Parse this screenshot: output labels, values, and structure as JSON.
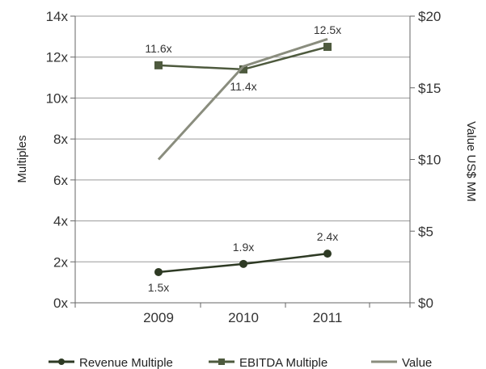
{
  "chart_data": {
    "type": "line",
    "categories": [
      "2009",
      "2010",
      "2011"
    ],
    "y_left": {
      "label": "Multiples",
      "range": [
        0,
        14
      ],
      "ticks": [
        "0x",
        "2x",
        "4x",
        "6x",
        "8x",
        "10x",
        "12x",
        "14x"
      ]
    },
    "y_right": {
      "label": "Value US$ MM",
      "range": [
        0,
        20
      ],
      "ticks": [
        "$0",
        "$5",
        "$10",
        "$15",
        "$20"
      ]
    },
    "grid": true,
    "legend_position": "bottom",
    "series": [
      {
        "name": "Revenue Multiple",
        "axis": "left",
        "marker": "circle",
        "color": "#2e3a24",
        "values": [
          1.5,
          1.9,
          2.4
        ],
        "labels": [
          "1.5x",
          "1.9x",
          "2.4x"
        ]
      },
      {
        "name": "EBITDA Multiple",
        "axis": "left",
        "marker": "square",
        "color": "#4e5a3e",
        "values": [
          11.6,
          11.4,
          12.5
        ],
        "labels": [
          "11.6x",
          "11.4x",
          "12.5x"
        ]
      },
      {
        "name": "Value",
        "axis": "right",
        "marker": "none",
        "color": "#8a8d7e",
        "values": [
          10,
          16.5,
          18.4
        ],
        "labels": []
      }
    ]
  }
}
